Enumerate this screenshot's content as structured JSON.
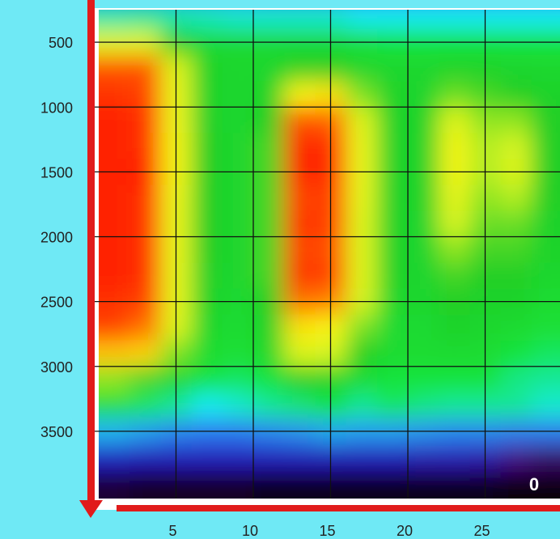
{
  "chart_data": {
    "type": "heatmap",
    "title": "",
    "xlabel": "",
    "ylabel": "",
    "x_ticks": [
      5,
      10,
      15,
      20,
      25
    ],
    "y_ticks": [
      500,
      1000,
      1500,
      2000,
      2500,
      3000,
      3500
    ],
    "xlim": [
      0,
      30
    ],
    "ylim": [
      4000,
      0
    ],
    "y_direction": "down",
    "grid": true,
    "colorscale": [
      "#000000",
      "#4a0a86",
      "#1a28d6",
      "#2f7bf2",
      "#14ecf4",
      "#19e43a",
      "#21cf27",
      "#d6f422",
      "#f8f414",
      "#ffa500",
      "#ff0000"
    ],
    "x_centers": [
      1,
      3,
      5,
      7,
      9,
      11,
      13,
      15,
      17,
      19,
      21,
      23,
      25,
      27,
      29
    ],
    "y_centers": [
      100,
      300,
      500,
      700,
      900,
      1100,
      1300,
      1500,
      1700,
      1900,
      2100,
      2300,
      2500,
      2700,
      2900,
      3100,
      3300,
      3500,
      3700,
      3900
    ],
    "z": [
      [
        0.28,
        0.3,
        0.3,
        0.29,
        0.29,
        0.28,
        0.27,
        0.28,
        0.28,
        0.27,
        0.27,
        0.27,
        0.27,
        0.27,
        0.27
      ],
      [
        0.44,
        0.45,
        0.44,
        0.43,
        0.42,
        0.42,
        0.42,
        0.42,
        0.4,
        0.4,
        0.4,
        0.4,
        0.4,
        0.4,
        0.4
      ],
      [
        0.72,
        0.72,
        0.6,
        0.55,
        0.55,
        0.55,
        0.55,
        0.55,
        0.52,
        0.5,
        0.5,
        0.5,
        0.5,
        0.5,
        0.5
      ],
      [
        0.95,
        0.95,
        0.72,
        0.58,
        0.56,
        0.56,
        0.6,
        0.6,
        0.57,
        0.56,
        0.56,
        0.58,
        0.58,
        0.57,
        0.56
      ],
      [
        0.97,
        0.96,
        0.75,
        0.58,
        0.56,
        0.58,
        0.8,
        0.82,
        0.65,
        0.58,
        0.57,
        0.64,
        0.62,
        0.6,
        0.58
      ],
      [
        0.98,
        0.97,
        0.76,
        0.59,
        0.56,
        0.6,
        0.95,
        0.94,
        0.72,
        0.58,
        0.58,
        0.72,
        0.66,
        0.66,
        0.6
      ],
      [
        0.98,
        0.97,
        0.78,
        0.6,
        0.56,
        0.62,
        0.98,
        0.97,
        0.75,
        0.58,
        0.58,
        0.78,
        0.68,
        0.7,
        0.6
      ],
      [
        0.98,
        0.98,
        0.78,
        0.6,
        0.56,
        0.62,
        0.98,
        0.97,
        0.75,
        0.58,
        0.58,
        0.78,
        0.68,
        0.72,
        0.6
      ],
      [
        0.98,
        0.97,
        0.76,
        0.6,
        0.56,
        0.62,
        0.96,
        0.96,
        0.74,
        0.58,
        0.58,
        0.74,
        0.66,
        0.68,
        0.6
      ],
      [
        0.98,
        0.97,
        0.75,
        0.6,
        0.56,
        0.62,
        0.97,
        0.96,
        0.72,
        0.58,
        0.57,
        0.7,
        0.64,
        0.64,
        0.58
      ],
      [
        0.98,
        0.97,
        0.75,
        0.6,
        0.56,
        0.62,
        0.96,
        0.95,
        0.72,
        0.58,
        0.57,
        0.66,
        0.62,
        0.62,
        0.58
      ],
      [
        0.98,
        0.97,
        0.74,
        0.59,
        0.56,
        0.62,
        0.97,
        0.96,
        0.72,
        0.58,
        0.57,
        0.62,
        0.6,
        0.6,
        0.56
      ],
      [
        0.97,
        0.96,
        0.74,
        0.58,
        0.55,
        0.6,
        0.93,
        0.92,
        0.7,
        0.56,
        0.56,
        0.6,
        0.58,
        0.58,
        0.54
      ],
      [
        0.96,
        0.93,
        0.72,
        0.56,
        0.54,
        0.58,
        0.82,
        0.8,
        0.65,
        0.55,
        0.55,
        0.58,
        0.56,
        0.55,
        0.52
      ],
      [
        0.86,
        0.84,
        0.65,
        0.54,
        0.52,
        0.56,
        0.72,
        0.7,
        0.6,
        0.54,
        0.54,
        0.55,
        0.54,
        0.5,
        0.48
      ],
      [
        0.66,
        0.62,
        0.56,
        0.5,
        0.48,
        0.5,
        0.6,
        0.58,
        0.54,
        0.5,
        0.5,
        0.5,
        0.5,
        0.46,
        0.45
      ],
      [
        0.52,
        0.48,
        0.45,
        0.4,
        0.42,
        0.45,
        0.47,
        0.5,
        0.45,
        0.48,
        0.46,
        0.45,
        0.45,
        0.45,
        0.42
      ],
      [
        0.35,
        0.33,
        0.31,
        0.3,
        0.3,
        0.31,
        0.32,
        0.34,
        0.33,
        0.33,
        0.32,
        0.31,
        0.31,
        0.3,
        0.3
      ],
      [
        0.18,
        0.17,
        0.17,
        0.17,
        0.17,
        0.17,
        0.17,
        0.17,
        0.17,
        0.17,
        0.16,
        0.16,
        0.15,
        0.1,
        0.08
      ],
      [
        0.04,
        0.03,
        0.03,
        0.03,
        0.03,
        0.02,
        0.02,
        0.02,
        0.02,
        0.02,
        0.02,
        0.02,
        0.02,
        0.01,
        0.01
      ]
    ],
    "corner_label": "0",
    "arrow_color": "#e11b1b",
    "frame_color": "#6fe9f5"
  }
}
